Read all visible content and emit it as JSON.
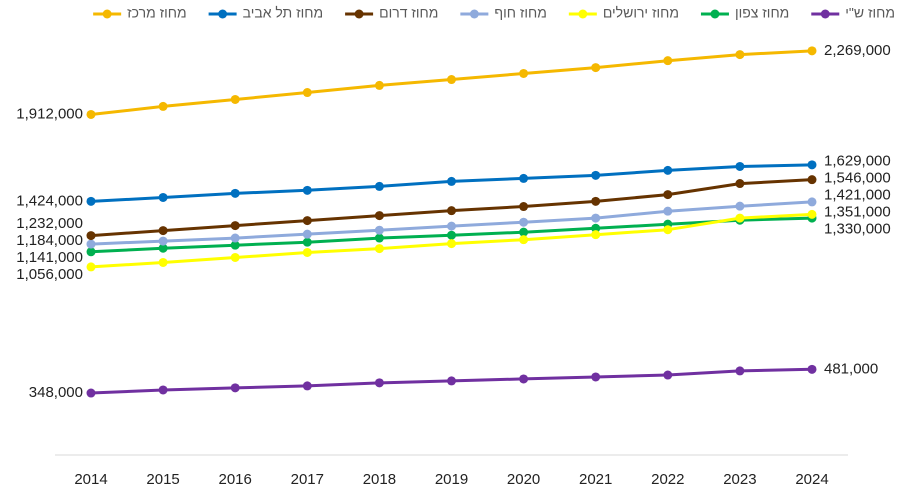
{
  "chart_data": {
    "type": "line",
    "categories": [
      "2014",
      "2015",
      "2016",
      "2017",
      "2018",
      "2019",
      "2020",
      "2021",
      "2022",
      "2023",
      "2024"
    ],
    "ylim": [
      0,
      2330000
    ],
    "series": [
      {
        "name": "מחוז ש\"י",
        "color": "#7030a0",
        "values": [
          348000,
          365000,
          377000,
          388000,
          405000,
          416000,
          427000,
          438000,
          449000,
          472000,
          481000
        ],
        "value_labels": [
          "348,000",
          null,
          null,
          null,
          null,
          null,
          null,
          null,
          null,
          null,
          "481,000"
        ]
      },
      {
        "name": "מחוז צפון",
        "color": "#00b050",
        "values": [
          1141000,
          1161000,
          1178000,
          1195000,
          1218000,
          1234000,
          1251000,
          1273000,
          1296000,
          1318000,
          1330000
        ],
        "value_labels": [
          "1,141,000",
          null,
          null,
          null,
          null,
          null,
          null,
          null,
          null,
          null,
          "1,330,000"
        ]
      },
      {
        "name": "מחוז ירושלים",
        "color": "#ffff00",
        "values": [
          1056000,
          1081000,
          1109000,
          1137000,
          1159000,
          1187000,
          1209000,
          1237000,
          1265000,
          1330000,
          1351000
        ],
        "value_labels": [
          "1,056,000",
          null,
          null,
          null,
          null,
          null,
          null,
          null,
          null,
          null,
          "1,351,000"
        ]
      },
      {
        "name": "מחוז חוף",
        "color": "#8faadc",
        "values": [
          1184000,
          1201000,
          1218000,
          1240000,
          1262000,
          1285000,
          1307000,
          1330000,
          1369000,
          1397000,
          1421000
        ],
        "value_labels": [
          "1,184,000",
          null,
          null,
          null,
          null,
          null,
          null,
          null,
          null,
          null,
          "1,421,000"
        ]
      },
      {
        "name": "מחוז דרום",
        "color": "#663300",
        "values": [
          1232000,
          1260000,
          1288000,
          1316000,
          1344000,
          1372000,
          1395000,
          1424000,
          1462000,
          1524000,
          1546000
        ],
        "value_labels": [
          "1,232,000",
          null,
          null,
          null,
          null,
          null,
          null,
          null,
          null,
          null,
          "1,546,000"
        ]
      },
      {
        "name": "מחוז תל אביב",
        "color": "#0070c0",
        "values": [
          1424000,
          1446000,
          1469000,
          1486000,
          1508000,
          1536000,
          1553000,
          1570000,
          1598000,
          1620000,
          1629000
        ],
        "value_labels": [
          "1,424,000",
          null,
          null,
          null,
          null,
          null,
          null,
          null,
          null,
          null,
          "1,629,000"
        ]
      },
      {
        "name": "מחוז מרכז",
        "color": "#f5b800",
        "values": [
          1912000,
          1957000,
          1996000,
          2035000,
          2075000,
          2108000,
          2142000,
          2175000,
          2214000,
          2248000,
          2269000
        ],
        "value_labels": [
          "1,912,000",
          null,
          null,
          null,
          null,
          null,
          null,
          null,
          null,
          null,
          "2,269,000"
        ]
      }
    ]
  }
}
